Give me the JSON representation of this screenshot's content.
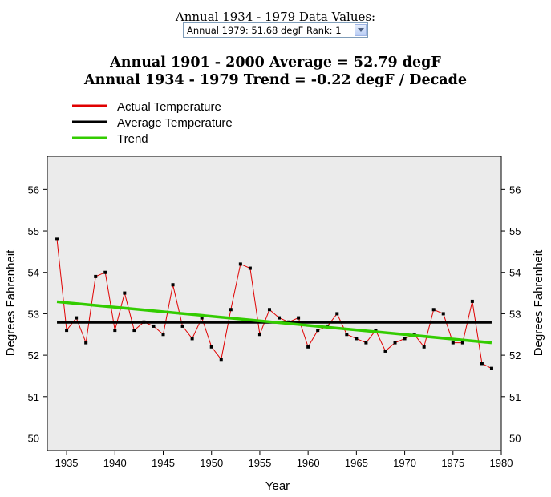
{
  "header": {
    "label": "Annual 1934 - 1979 Data Values:",
    "select_value": "Annual 1979: 51.68 degF  Rank: 1"
  },
  "titles": {
    "average": "Annual 1901 - 2000 Average = 52.79 degF",
    "trend": "Annual 1934 - 1979 Trend = -0.22 degF / Decade"
  },
  "legend": {
    "actual": "Actual Temperature",
    "average": "Average Temperature",
    "trend": "Trend"
  },
  "colors": {
    "actual": "#e00000",
    "average": "#000000",
    "trend": "#33cc00",
    "plot_bg": "#ebebeb"
  },
  "chart_data": {
    "type": "line",
    "xlabel": "Year",
    "ylabel": "Degrees Fahrenheit",
    "xlim": [
      1933,
      1980
    ],
    "ylim": [
      49.7,
      56.8
    ],
    "xticks": [
      1935,
      1940,
      1945,
      1950,
      1955,
      1960,
      1965,
      1970,
      1975,
      1980
    ],
    "yticks": [
      50,
      51,
      52,
      53,
      54,
      55,
      56
    ],
    "grid": false,
    "legend_position": "top-left",
    "series": [
      {
        "name": "Actual Temperature",
        "x": [
          1934,
          1935,
          1936,
          1937,
          1938,
          1939,
          1940,
          1941,
          1942,
          1943,
          1944,
          1945,
          1946,
          1947,
          1948,
          1949,
          1950,
          1951,
          1952,
          1953,
          1954,
          1955,
          1956,
          1957,
          1958,
          1959,
          1960,
          1961,
          1962,
          1963,
          1964,
          1965,
          1966,
          1967,
          1968,
          1969,
          1970,
          1971,
          1972,
          1973,
          1974,
          1975,
          1976,
          1977,
          1978,
          1979
        ],
        "y": [
          54.8,
          52.6,
          52.9,
          52.3,
          53.9,
          54.0,
          52.6,
          53.5,
          52.6,
          52.8,
          52.7,
          52.5,
          53.7,
          52.7,
          52.4,
          52.9,
          52.2,
          51.9,
          53.1,
          54.2,
          54.1,
          52.5,
          53.1,
          52.9,
          52.8,
          52.9,
          52.2,
          52.6,
          52.7,
          53.0,
          52.5,
          52.4,
          52.3,
          52.6,
          52.1,
          52.3,
          52.4,
          52.5,
          52.2,
          53.1,
          53.0,
          52.3,
          52.3,
          53.3,
          51.8,
          51.68
        ]
      },
      {
        "name": "Average Temperature",
        "x": [
          1934,
          1979
        ],
        "y": [
          52.79,
          52.79
        ]
      },
      {
        "name": "Trend",
        "x": [
          1934,
          1979
        ],
        "y": [
          53.29,
          52.3
        ]
      }
    ]
  }
}
